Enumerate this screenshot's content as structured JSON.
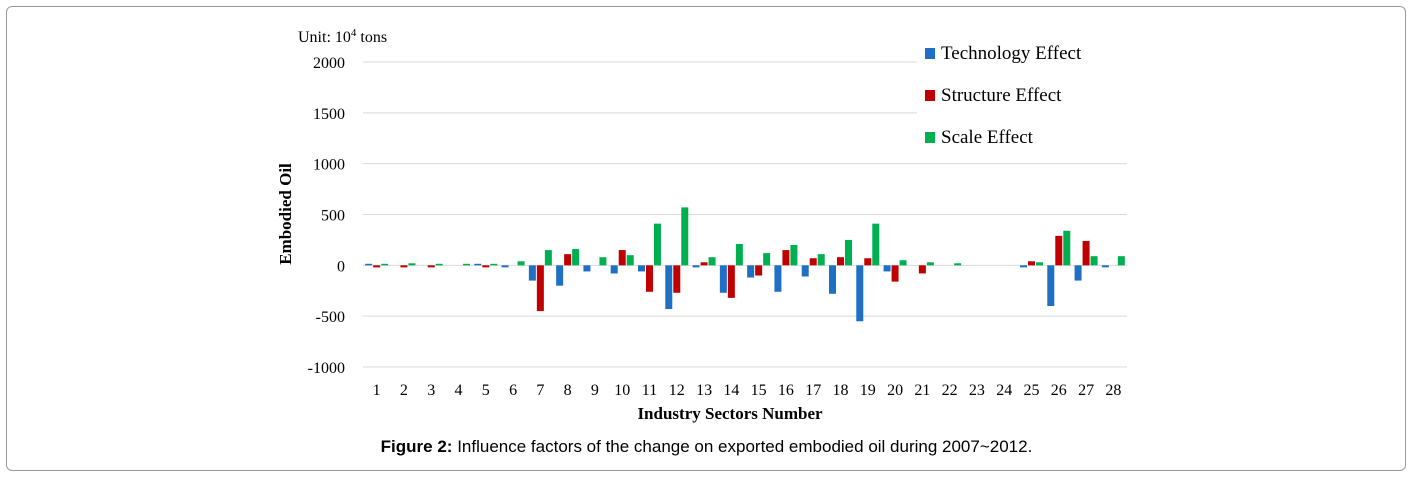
{
  "caption": {
    "label": "Figure 2:",
    "text": "Influence factors of the change on exported embodied oil during 2007~2012."
  },
  "chart_data": {
    "type": "bar",
    "unit_label": "Unit: 10",
    "unit_exponent": "4",
    "unit_suffix": " tons",
    "xlabel": "Industry Sectors Number",
    "ylabel": "Embodied Oil",
    "ylim": [
      -1000,
      2000
    ],
    "yticks": [
      2000,
      1500,
      1000,
      500,
      0,
      -500,
      -1000
    ],
    "grid": true,
    "legend_position": "top-right",
    "categories": [
      "1",
      "2",
      "3",
      "4",
      "5",
      "6",
      "7",
      "8",
      "9",
      "10",
      "11",
      "12",
      "13",
      "14",
      "15",
      "16",
      "17",
      "18",
      "19",
      "20",
      "21",
      "22",
      "23",
      "24",
      "25",
      "26",
      "27",
      "28"
    ],
    "series": [
      {
        "name": "Technology Effect",
        "color": "#1f6fc5",
        "values": [
          15,
          0,
          0,
          0,
          15,
          -20,
          -150,
          -200,
          -60,
          -80,
          -60,
          -430,
          -20,
          -270,
          -120,
          -260,
          -110,
          -280,
          -550,
          -60,
          0,
          0,
          0,
          0,
          -20,
          -400,
          -150,
          -20
        ]
      },
      {
        "name": "Structure Effect",
        "color": "#c00000",
        "values": [
          -20,
          -20,
          -20,
          0,
          -20,
          0,
          -450,
          110,
          0,
          150,
          -260,
          -270,
          30,
          -320,
          -100,
          150,
          70,
          80,
          70,
          -160,
          -80,
          0,
          0,
          0,
          40,
          290,
          240,
          0
        ]
      },
      {
        "name": "Scale Effect",
        "color": "#00b050",
        "values": [
          15,
          20,
          15,
          15,
          15,
          40,
          150,
          160,
          80,
          100,
          410,
          570,
          80,
          210,
          120,
          200,
          110,
          250,
          410,
          50,
          30,
          20,
          0,
          0,
          30,
          340,
          90,
          90
        ]
      }
    ]
  }
}
